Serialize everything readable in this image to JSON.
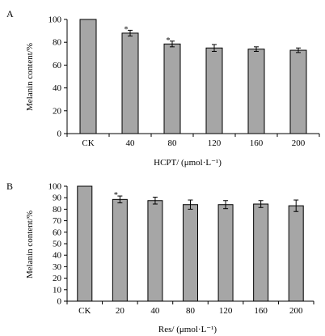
{
  "chart_data": [
    {
      "panel": "A",
      "type": "bar",
      "categories": [
        "CK",
        "40",
        "80",
        "120",
        "160",
        "200"
      ],
      "values": [
        100,
        88,
        78.5,
        75,
        74,
        73
      ],
      "errors": [
        0,
        2.5,
        2.5,
        3,
        2,
        2
      ],
      "significance": [
        "",
        "*",
        "*",
        "",
        "",
        ""
      ],
      "xlabel": "HCPT/ (μmol·L⁻¹)",
      "ylabel": "Melanin content/%",
      "ylim": [
        0,
        100
      ],
      "yticks": [
        0,
        20,
        40,
        60,
        80,
        100
      ],
      "bar_color": "#a6a6a6",
      "grid": false
    },
    {
      "panel": "B",
      "type": "bar",
      "categories": [
        "CK",
        "20",
        "40",
        "80",
        "120",
        "160",
        "200"
      ],
      "values": [
        100,
        88.5,
        87.5,
        84,
        84,
        84.5,
        83
      ],
      "errors": [
        0,
        3,
        3,
        4,
        3.5,
        3,
        5
      ],
      "significance": [
        "",
        "*",
        "",
        "",
        "",
        "",
        ""
      ],
      "xlabel": "Res/ (μmol·L⁻¹)",
      "ylabel": "Melanin content/%",
      "ylim": [
        0,
        100
      ],
      "yticks": [
        0,
        10,
        20,
        30,
        40,
        50,
        60,
        70,
        80,
        90,
        100
      ],
      "bar_color": "#a6a6a6",
      "grid": false
    }
  ]
}
